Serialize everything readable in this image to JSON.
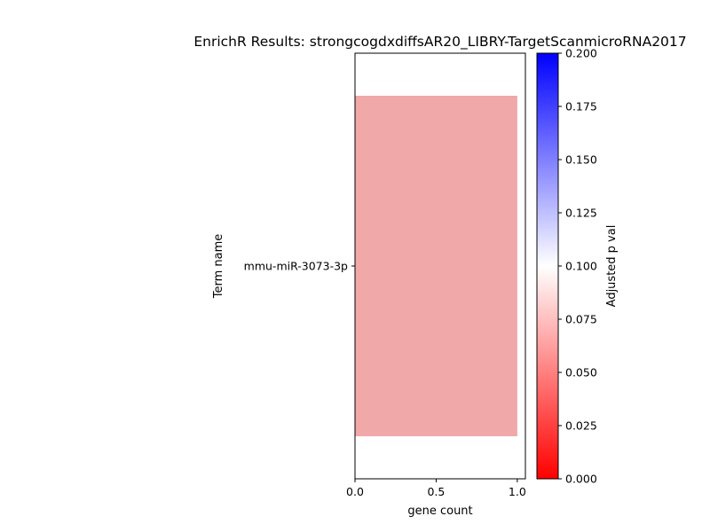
{
  "chart_data": {
    "type": "bar",
    "orientation": "horizontal",
    "title": "EnrichR Results: strongcogdxdiffsAR20_LIBRY-TargetScanmicroRNA2017",
    "xlabel": "gene count",
    "ylabel": "Term name",
    "categories": [
      "mmu-miR-3073-3p"
    ],
    "values": [
      1
    ],
    "bar_colors": [
      "#f0a8a8"
    ],
    "xlim": [
      0,
      1.05
    ],
    "x_ticks": [
      "0.0",
      "0.5",
      "1.0"
    ],
    "x_tick_values": [
      0,
      0.5,
      1.0
    ],
    "grid": false,
    "colorbar": {
      "label": "Adjusted p val",
      "range": [
        0,
        0.2
      ],
      "ticks": [
        "0.000",
        "0.025",
        "0.050",
        "0.075",
        "0.100",
        "0.125",
        "0.150",
        "0.175",
        "0.200"
      ],
      "tick_values": [
        0,
        0.025,
        0.05,
        0.075,
        0.1,
        0.125,
        0.15,
        0.175,
        0.2
      ],
      "colors": {
        "low": "#ff0000",
        "mid": "#ffffff",
        "high": "#0000ff"
      }
    }
  }
}
